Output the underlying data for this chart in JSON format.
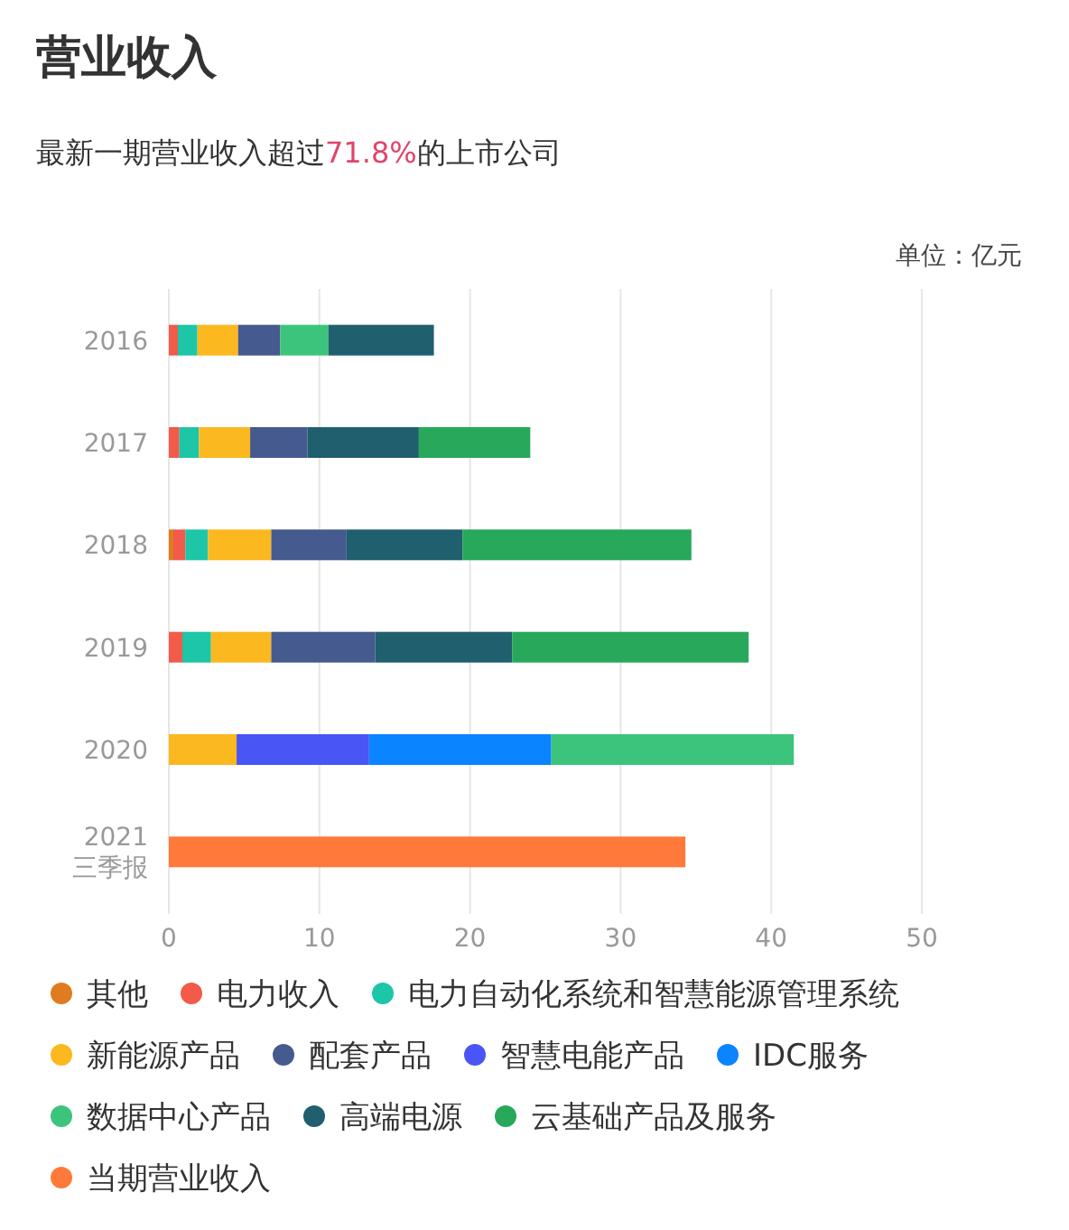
{
  "chart_data": {
    "type": "bar",
    "orientation": "horizontal",
    "stacked": true,
    "title": "营业收入",
    "subtitle": "最新一期营业收入超过71.8%的上市公司",
    "annotations": [
      "单位：亿元"
    ],
    "categories": [
      "2016",
      "2017",
      "2018",
      "2019",
      "2020",
      "2021\n三季报"
    ],
    "series": [
      {
        "name": "其他",
        "color": "#e07b1f",
        "values": [
          null,
          null,
          0.3,
          null,
          null,
          null
        ]
      },
      {
        "name": "电力收入",
        "color": "#f25a4a",
        "values": [
          0.6,
          0.7,
          0.8,
          0.9,
          null,
          null
        ]
      },
      {
        "name": "电力自动化系统和智慧能源管理系统",
        "color": "#1cc6a7",
        "values": [
          1.3,
          1.3,
          1.5,
          1.9,
          null,
          null
        ]
      },
      {
        "name": "新能源产品",
        "color": "#fbb81f",
        "values": [
          2.7,
          3.4,
          4.2,
          4.0,
          4.5,
          null
        ]
      },
      {
        "name": "配套产品",
        "color": "#455a8e",
        "values": [
          2.8,
          3.8,
          5.0,
          6.9,
          null,
          null
        ]
      },
      {
        "name": "智慧电能产品",
        "color": "#4a55f5",
        "values": [
          null,
          null,
          null,
          null,
          8.8,
          null
        ]
      },
      {
        "name": "IDC服务",
        "color": "#0a84ff",
        "values": [
          null,
          null,
          null,
          null,
          12.1,
          null
        ]
      },
      {
        "name": "数据中心产品",
        "color": "#3cc47c",
        "values": [
          3.2,
          null,
          null,
          null,
          16.1,
          null
        ]
      },
      {
        "name": "高端电源",
        "color": "#1f5f6e",
        "values": [
          7.0,
          7.4,
          7.7,
          9.1,
          null,
          null
        ]
      },
      {
        "name": "云基础产品及服务",
        "color": "#27a85a",
        "values": [
          null,
          7.4,
          15.2,
          15.7,
          null,
          null
        ]
      },
      {
        "name": "当期营业收入",
        "color": "#ff7a3a",
        "values": [
          null,
          null,
          null,
          null,
          null,
          34.3
        ]
      }
    ],
    "xlim": [
      0,
      50
    ],
    "xticks": [
      0,
      10,
      20,
      30,
      40,
      50
    ],
    "grid": "x",
    "legend": "bottom"
  }
}
